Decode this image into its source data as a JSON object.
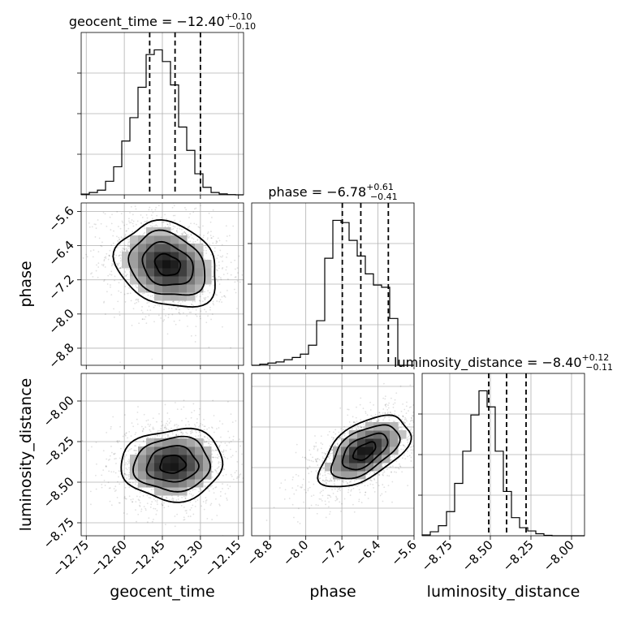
{
  "chart_data": {
    "type": "corner",
    "parameters": [
      {
        "name": "geocent_time",
        "label": "geocent_time",
        "median": -12.4,
        "lower": -0.1,
        "upper": 0.1,
        "title_text": "geocent_time = −12.40",
        "title_sup": "+0.10",
        "title_sub": "−0.10",
        "quantiles": [
          -12.5,
          -12.4,
          -12.3
        ],
        "xlim": [
          -12.77,
          -12.13
        ],
        "ticks": [
          -12.75,
          -12.6,
          -12.45,
          -12.3,
          -12.15
        ],
        "tick_labels": [
          "−12.75",
          "−12.60",
          "−12.45",
          "−12.30",
          "−12.15"
        ],
        "hist_edges_start": -12.77,
        "hist_bin_width": 0.032,
        "hist_counts": [
          0.3,
          1.0,
          2.0,
          5.8,
          12,
          23,
          33,
          46,
          60,
          62,
          57,
          47,
          29,
          19,
          9,
          3.2,
          1.0,
          0.4,
          0.1,
          0.0
        ]
      },
      {
        "name": "phase",
        "label": "phase",
        "median": -6.78,
        "lower": -0.41,
        "upper": 0.61,
        "title_text": "phase = −6.78",
        "title_sup": "+0.61",
        "title_sub": "−0.41",
        "quantiles": [
          -7.19,
          -6.78,
          -6.17
        ],
        "xlim": [
          -9.2,
          -5.6
        ],
        "ticks": [
          -8.8,
          -8.0,
          -7.2,
          -6.4,
          -5.6
        ],
        "tick_labels": [
          "−8.8",
          "−8.0",
          "−7.2",
          "−6.4",
          "−5.6"
        ],
        "hist_edges_start": -9.2,
        "hist_bin_width": 0.18,
        "hist_counts": [
          0,
          0.5,
          1.0,
          1.5,
          2.5,
          3.5,
          5,
          9,
          20,
          48,
          65,
          64,
          56,
          49,
          41,
          36,
          35,
          21,
          0,
          0
        ]
      },
      {
        "name": "luminosity_distance",
        "label": "luminosity_distance",
        "median": -8.4,
        "lower": -0.11,
        "upper": 0.12,
        "title_text": "luminosity_distance = −8.40",
        "title_sup": "+0.12",
        "title_sub": "−0.11",
        "quantiles": [
          -8.51,
          -8.4,
          -8.28
        ],
        "xlim": [
          -8.92,
          -7.92
        ],
        "ticks": [
          -8.75,
          -8.5,
          -8.25,
          -8.0
        ],
        "tick_labels": [
          "−8.75",
          "−8.50",
          "−8.25",
          "−8.00"
        ],
        "hist_edges_start": -8.92,
        "hist_bin_width": 0.05,
        "hist_counts": [
          0.2,
          1.0,
          2.5,
          6,
          13,
          21,
          30,
          36,
          32,
          21,
          11,
          4.5,
          2.0,
          1.2,
          0.5,
          0.1,
          0,
          0,
          0,
          0
        ]
      }
    ],
    "pairs": [
      {
        "x": "geocent_time",
        "y": "phase",
        "ylim": [
          -9.2,
          -5.4
        ],
        "yticks": [
          -8.8,
          -8.0,
          -7.2,
          -6.4,
          -5.6
        ],
        "ytick_labels": [
          "−8.8",
          "−8.0",
          "−7.2",
          "−6.4",
          "−5.6"
        ],
        "center": [
          -12.43,
          -6.85
        ],
        "sigma": [
          0.1,
          0.5
        ],
        "rho": -0.2
      },
      {
        "x": "geocent_time",
        "y": "luminosity_distance",
        "ylim": [
          -8.83,
          -7.83
        ],
        "yticks": [
          -8.75,
          -8.5,
          -8.25,
          -8.0
        ],
        "ytick_labels": [
          "−8.75",
          "−8.50",
          "−8.25",
          "−8.00"
        ],
        "center": [
          -12.41,
          -8.39
        ],
        "sigma": [
          0.1,
          0.11
        ],
        "rho": 0.05
      },
      {
        "x": "phase",
        "y": "luminosity_distance",
        "center": [
          -6.7,
          -8.4
        ],
        "sigma": [
          0.5,
          0.11
        ],
        "rho": 0.55
      }
    ],
    "grid": true
  }
}
